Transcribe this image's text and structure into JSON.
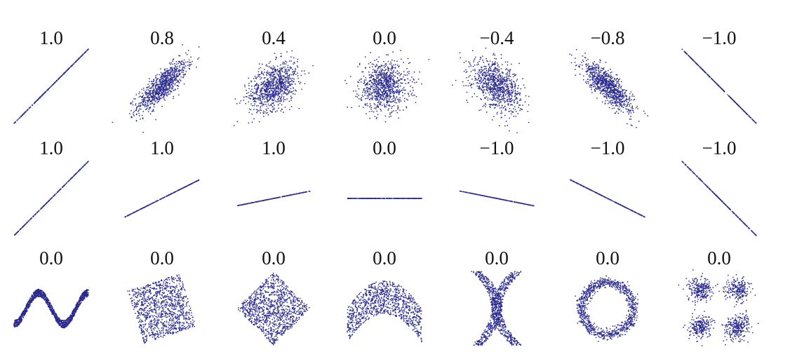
{
  "chart_data": {
    "type": "scatter",
    "grid": false,
    "point_color": "#2b2b8f",
    "rows": [
      {
        "panels": [
          {
            "title": "1.0",
            "kind": "linear-noise",
            "correlation": 1.0
          },
          {
            "title": "0.8",
            "kind": "linear-noise",
            "correlation": 0.8
          },
          {
            "title": "0.4",
            "kind": "linear-noise",
            "correlation": 0.4
          },
          {
            "title": "0.0",
            "kind": "linear-noise",
            "correlation": 0.0
          },
          {
            "title": "−0.4",
            "kind": "linear-noise",
            "correlation": -0.4
          },
          {
            "title": "−0.8",
            "kind": "linear-noise",
            "correlation": -0.8
          },
          {
            "title": "−1.0",
            "kind": "linear-noise",
            "correlation": -1.0
          }
        ]
      },
      {
        "panels": [
          {
            "title": "1.0",
            "kind": "perfect-line",
            "slope": 1.0
          },
          {
            "title": "1.0",
            "kind": "perfect-line",
            "slope": 0.5
          },
          {
            "title": "1.0",
            "kind": "perfect-line",
            "slope": 0.2
          },
          {
            "title": "0.0",
            "kind": "perfect-line",
            "slope": 0.0
          },
          {
            "title": "−1.0",
            "kind": "perfect-line",
            "slope": -0.2
          },
          {
            "title": "−1.0",
            "kind": "perfect-line",
            "slope": -0.5
          },
          {
            "title": "−1.0",
            "kind": "perfect-line",
            "slope": -1.0
          }
        ]
      },
      {
        "panels": [
          {
            "title": "0.0",
            "kind": "sine-wave"
          },
          {
            "title": "0.0",
            "kind": "rotated-square",
            "rotation_deg": 18
          },
          {
            "title": "0.0",
            "kind": "rotated-square",
            "rotation_deg": 45
          },
          {
            "title": "0.0",
            "kind": "parabola"
          },
          {
            "title": "0.0",
            "kind": "x-shape"
          },
          {
            "title": "0.0",
            "kind": "ring"
          },
          {
            "title": "0.0",
            "kind": "four-clusters"
          }
        ]
      }
    ]
  }
}
